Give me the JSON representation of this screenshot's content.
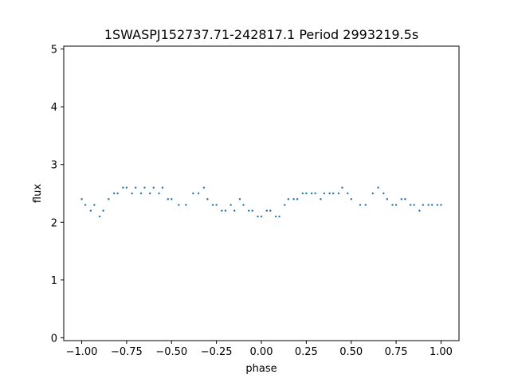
{
  "chart_data": {
    "type": "scatter",
    "title": "1SWASPJ152737.71-242817.1 Period 2993219.5s",
    "xlabel": "phase",
    "ylabel": "flux",
    "xlim": [
      -1.1,
      1.1
    ],
    "ylim": [
      -0.05,
      5.05
    ],
    "x_ticks": [
      -1.0,
      -0.75,
      -0.5,
      -0.25,
      0.0,
      0.25,
      0.5,
      0.75,
      1.0
    ],
    "x_tick_labels": [
      "−1.00",
      "−0.75",
      "−0.50",
      "−0.25",
      "0.00",
      "0.25",
      "0.50",
      "0.75",
      "1.00"
    ],
    "y_ticks": [
      0,
      1,
      2,
      3,
      4,
      5
    ],
    "y_tick_labels": [
      "0",
      "1",
      "2",
      "3",
      "4",
      "5"
    ],
    "grid": false,
    "marker_color": "#1f77b4",
    "series": [
      {
        "x": [
          -1.0,
          -0.98,
          -0.95,
          -0.93,
          -0.9,
          -0.88,
          -0.85,
          -0.82,
          -0.8,
          -0.77,
          -0.75,
          -0.72,
          -0.7,
          -0.67,
          -0.65,
          -0.62,
          -0.6,
          -0.57,
          -0.55,
          -0.52,
          -0.5,
          -0.46,
          -0.42,
          -0.38,
          -0.35,
          -0.32,
          -0.3,
          -0.27,
          -0.25,
          -0.22,
          -0.2,
          -0.17,
          -0.15,
          -0.12,
          -0.1,
          -0.07,
          -0.05,
          -0.02,
          0.0,
          0.03,
          0.05,
          0.08,
          0.1,
          0.13,
          0.15,
          0.18,
          0.2,
          0.23,
          0.25,
          0.28,
          0.3,
          0.33,
          0.35,
          0.38,
          0.4,
          0.43,
          0.45,
          0.48,
          0.5,
          0.55,
          0.58,
          0.62,
          0.65,
          0.68,
          0.7,
          0.73,
          0.75,
          0.78,
          0.8,
          0.83,
          0.85,
          0.88,
          0.9,
          0.93,
          0.95,
          0.98,
          1.0
        ],
        "y": [
          2.4,
          2.3,
          2.2,
          2.3,
          2.1,
          2.2,
          2.4,
          2.5,
          2.5,
          2.6,
          2.6,
          2.5,
          2.6,
          2.5,
          2.6,
          2.5,
          2.6,
          2.5,
          2.6,
          2.4,
          2.4,
          2.3,
          2.3,
          2.5,
          2.5,
          2.6,
          2.4,
          2.3,
          2.3,
          2.2,
          2.2,
          2.3,
          2.2,
          2.4,
          2.3,
          2.2,
          2.2,
          2.1,
          2.1,
          2.2,
          2.2,
          2.1,
          2.1,
          2.3,
          2.4,
          2.4,
          2.4,
          2.5,
          2.5,
          2.5,
          2.5,
          2.4,
          2.5,
          2.5,
          2.5,
          2.5,
          2.6,
          2.5,
          2.4,
          2.3,
          2.3,
          2.5,
          2.6,
          2.5,
          2.4,
          2.3,
          2.3,
          2.4,
          2.4,
          2.3,
          2.3,
          2.2,
          2.3,
          2.3,
          2.3,
          2.3,
          2.3
        ]
      }
    ]
  }
}
